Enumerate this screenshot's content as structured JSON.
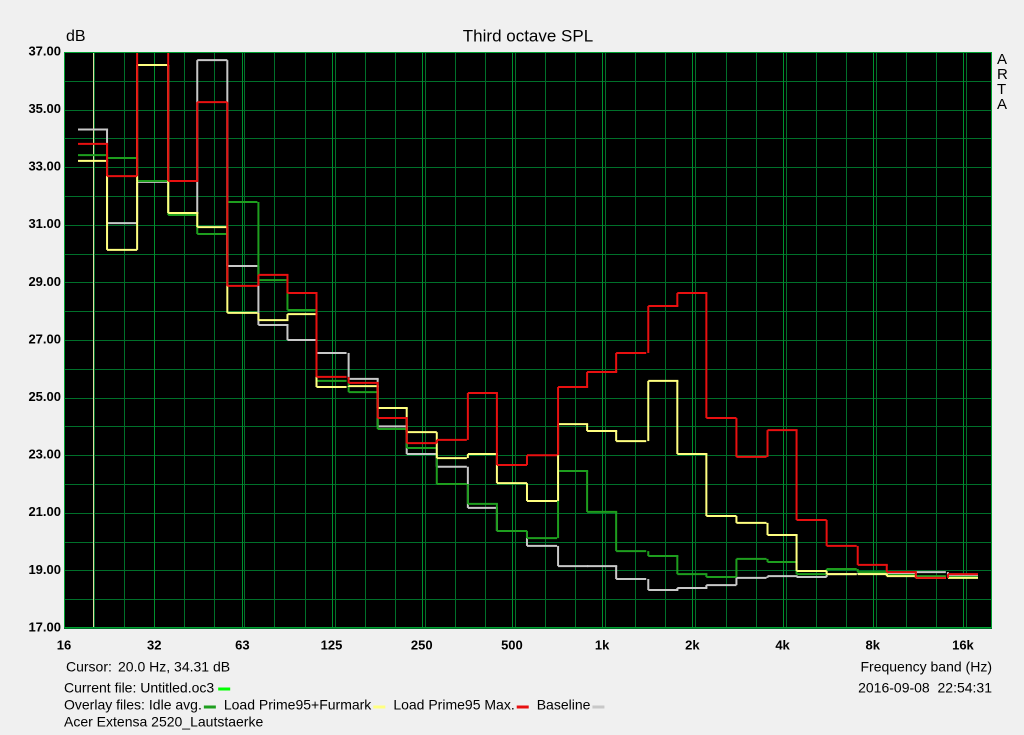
{
  "chart_data": {
    "type": "step",
    "title": "Third octave SPL",
    "y_label": "dB",
    "x_label": "Frequency band (Hz)",
    "watermark": "ARTA",
    "log_x": true,
    "grid": true,
    "background": "#000000",
    "grid_color": "#00702a",
    "x": [
      20,
      25,
      31.5,
      40,
      50,
      63,
      80,
      100,
      125,
      160,
      200,
      250,
      315,
      400,
      500,
      630,
      800,
      1000,
      1250,
      1600,
      2000,
      2500,
      3150,
      4000,
      5000,
      6300,
      8000,
      10000,
      12500,
      16000
    ],
    "series": [
      {
        "name": "Idle avg.",
        "color": "#1e9e1e",
        "values": [
          33.42,
          33.32,
          32.52,
          31.34,
          30.68,
          31.79,
          29.08,
          28.04,
          25.58,
          25.19,
          23.91,
          23.25,
          22.0,
          21.31,
          20.37,
          20.12,
          22.45,
          21.03,
          19.67,
          19.5,
          18.87,
          18.77,
          19.4,
          19.29,
          18.87,
          19.05,
          18.94,
          18.84,
          18.8,
          18.77
        ]
      },
      {
        "name": "Load Prime95+Furmark",
        "color": "#ffff80",
        "values": [
          33.22,
          30.13,
          36.55,
          31.41,
          30.92,
          27.94,
          27.69,
          27.9,
          25.37,
          25.4,
          24.64,
          23.8,
          22.9,
          23.04,
          22.03,
          21.41,
          24.08,
          23.84,
          23.49,
          25.58,
          23.04,
          20.89,
          20.65,
          20.23,
          18.98,
          18.87,
          18.87,
          18.8,
          18.74,
          18.74
        ]
      },
      {
        "name": "Load Prime95 Max.",
        "color": "#e81010",
        "values": [
          33.81,
          32.69,
          37.5,
          32.52,
          35.26,
          28.88,
          29.26,
          28.63,
          25.72,
          25.51,
          24.29,
          23.42,
          23.53,
          25.16,
          22.66,
          23.0,
          25.37,
          25.89,
          26.55,
          28.18,
          28.63,
          24.29,
          22.94,
          23.87,
          20.75,
          19.85,
          19.19,
          18.94,
          18.74,
          18.87
        ]
      },
      {
        "name": "Baseline",
        "color": "#c8c8c8",
        "values": [
          34.31,
          31.06,
          32.49,
          31.41,
          36.72,
          29.57,
          27.52,
          27.0,
          26.55,
          25.65,
          24.0,
          23.04,
          22.6,
          21.17,
          20.37,
          19.85,
          19.15,
          19.15,
          18.7,
          18.32,
          18.39,
          18.49,
          18.74,
          18.8,
          18.77,
          18.87,
          18.9,
          18.9,
          18.94,
          18.8
        ]
      }
    ],
    "xlim": [
      16,
      20000
    ],
    "ylim": [
      17,
      37
    ],
    "xticks": [
      16,
      32,
      63,
      125,
      250,
      500,
      {
        "value": 1000,
        "label": "1k"
      },
      {
        "value": 2000,
        "label": "2k"
      },
      {
        "value": 4000,
        "label": "4k"
      },
      {
        "value": 8000,
        "label": "8k"
      },
      {
        "value": 16000,
        "label": "16k"
      }
    ],
    "yticks": [
      {
        "value": 17,
        "label": "17.00"
      },
      {
        "value": 19,
        "label": "19.00"
      },
      {
        "value": 21,
        "label": "21.00"
      },
      {
        "value": 23,
        "label": "23.00"
      },
      {
        "value": 25,
        "label": "25.00"
      },
      {
        "value": 27,
        "label": "27.00"
      },
      {
        "value": 29,
        "label": "29.00"
      },
      {
        "value": 31,
        "label": "31.00"
      },
      {
        "value": 33,
        "label": "33.00"
      },
      {
        "value": 35,
        "label": "35.00"
      },
      {
        "value": 37,
        "label": "37.00"
      }
    ]
  },
  "footer": {
    "cursor_label": "Cursor:",
    "cursor_value": "20.0 Hz, 34.31 dB",
    "current_file": "Current file: Untitled.oc3",
    "current_color": "#00ff00",
    "overlay_label": "Overlay files:",
    "timestamp": "2016-09-08  22:54:31",
    "file_name": "Acer Extensa 2520_Lautstaerke"
  }
}
